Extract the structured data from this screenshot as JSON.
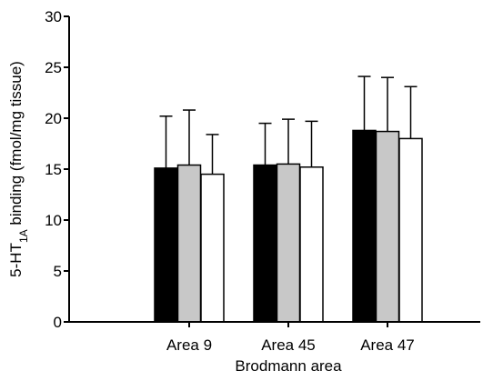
{
  "chart_data": {
    "type": "bar",
    "title": "",
    "xlabel": "Brodmann area",
    "ylabel": {
      "prefix": "5-HT",
      "subscript": "1A",
      "suffix": " binding (fmol/mg tissue)"
    },
    "ylim": [
      0,
      30
    ],
    "yticks": [
      0,
      5,
      10,
      15,
      20,
      25,
      30
    ],
    "categories": [
      "Area 9",
      "Area 45",
      "Area 47"
    ],
    "legend": "none",
    "grid": false,
    "series": [
      {
        "color": "#000000",
        "values": [
          15.1,
          15.4,
          18.8
        ],
        "errors": [
          5.1,
          4.1,
          5.3
        ]
      },
      {
        "color": "#c8c8c8",
        "values": [
          15.4,
          15.5,
          18.7
        ],
        "errors": [
          5.4,
          4.4,
          5.3
        ]
      },
      {
        "color": "#ffffff",
        "values": [
          14.5,
          15.2,
          18.0
        ],
        "errors": [
          3.9,
          4.5,
          5.1
        ]
      }
    ]
  }
}
